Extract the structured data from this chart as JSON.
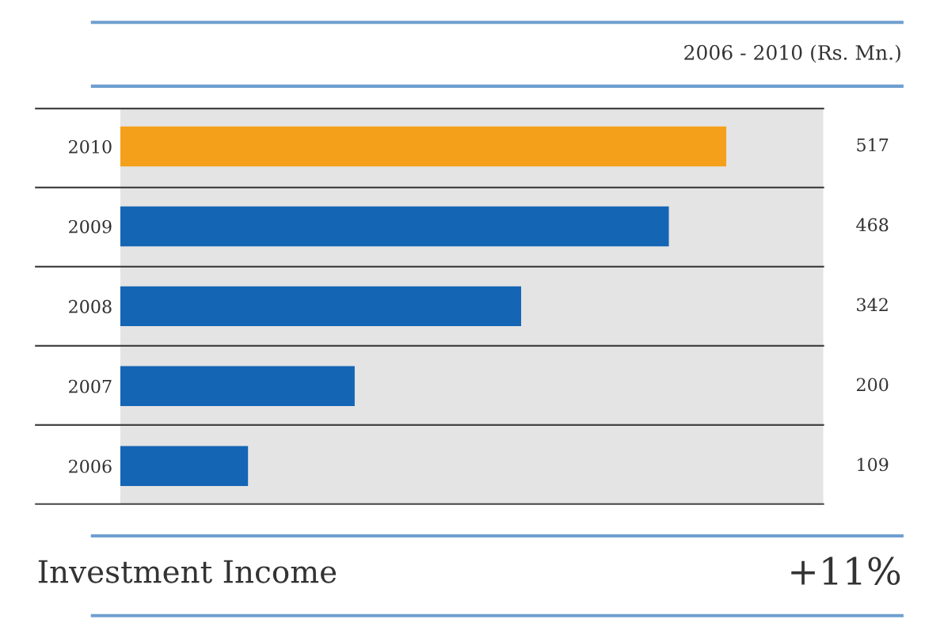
{
  "chart_data": {
    "type": "bar",
    "orientation": "horizontal",
    "title": "Investment Income",
    "subtitle": "2006 - 2010 (Rs. Mn.)",
    "categories": [
      "2010",
      "2009",
      "2008",
      "2007",
      "2006"
    ],
    "values": [
      517,
      468,
      342,
      200,
      109
    ],
    "colors": [
      "#f5a01a",
      "#1565b5",
      "#1565b5",
      "#1565b5",
      "#1565b5"
    ],
    "data_labels": true,
    "annotations": [
      "+11%"
    ],
    "grid": false,
    "tick_labels": "y"
  }
}
